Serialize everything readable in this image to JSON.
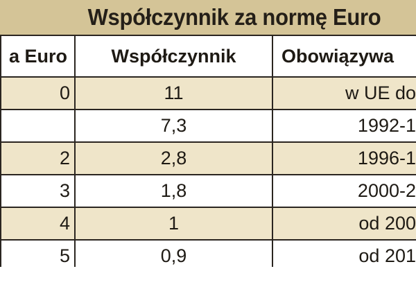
{
  "title": "Współczynnik za normę Euro",
  "columns": [
    "a Euro",
    "Współczynnik",
    "Obowiązywa"
  ],
  "rows": [
    {
      "norm": "0",
      "factor": "11",
      "period": "w UE do"
    },
    {
      "norm": "",
      "factor": "7,3",
      "period": "1992-1"
    },
    {
      "norm": "2",
      "factor": "2,8",
      "period": "1996-1"
    },
    {
      "norm": "3",
      "factor": "1,8",
      "period": "2000-2"
    },
    {
      "norm": "4",
      "factor": "1",
      "period": "od 200"
    },
    {
      "norm": "5",
      "factor": "0,9",
      "period": "od 201"
    }
  ],
  "colors": {
    "title_bg": "#d4c497",
    "shaded_row": "#efe5c9",
    "border": "#2a2520"
  }
}
